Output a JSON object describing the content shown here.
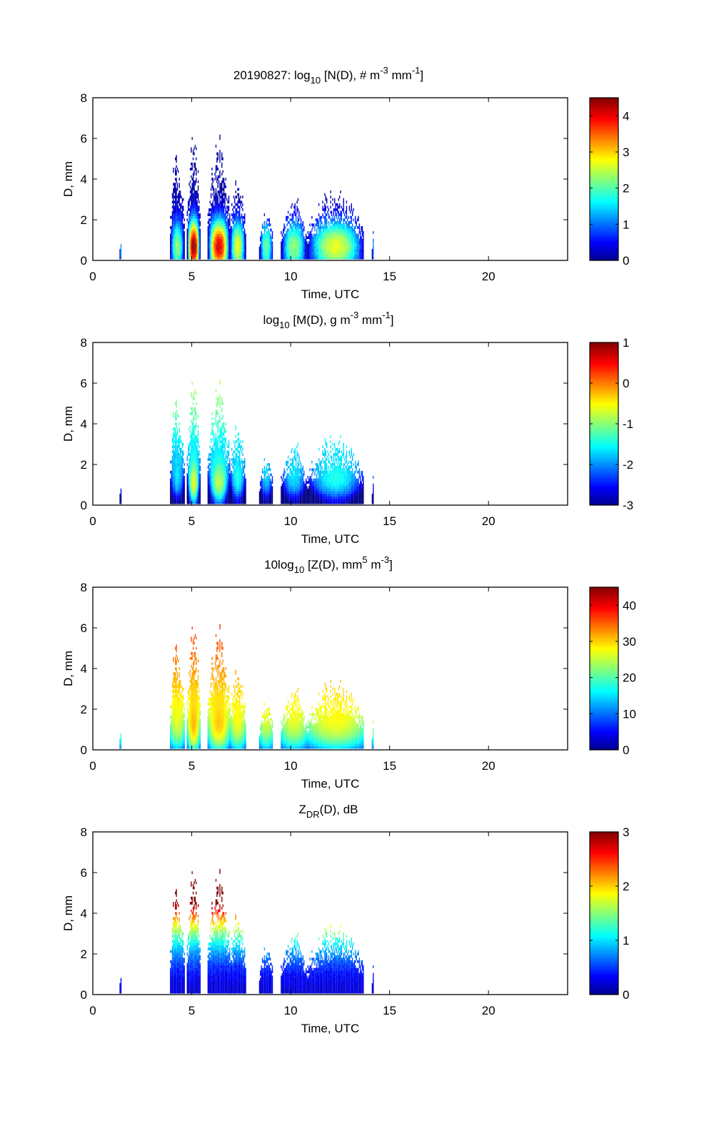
{
  "figure": {
    "date": "20190827"
  },
  "chart_data": [
    {
      "type": "heatmap",
      "title_parts": {
        "prefix": "20190827: log",
        "sub": "10",
        "rest": " [N(D), # m",
        "sup1": "-3",
        "mid": " mm",
        "sup2": "-1",
        "end": "]"
      },
      "xlabel": "Time, UTC",
      "ylabel": "D, mm",
      "xlim": [
        0,
        24
      ],
      "ylim": [
        0,
        8
      ],
      "xticks": [
        0,
        5,
        10,
        15,
        20
      ],
      "yticks": [
        0,
        2,
        4,
        6,
        8
      ],
      "colorbar": {
        "colormap": "jet",
        "clim": [
          0,
          4.5
        ],
        "ticks": [
          0,
          1,
          2,
          3,
          4
        ]
      },
      "variable": "N",
      "clusters": [
        {
          "t0": 1.35,
          "t1": 1.45,
          "dmax": 0.9,
          "peak": 1.2
        },
        {
          "t0": 3.9,
          "t1": 4.6,
          "dmax": 5.9,
          "peak": 2.2
        },
        {
          "t0": 4.75,
          "t1": 5.4,
          "dmax": 6.9,
          "peak": 4.4
        },
        {
          "t0": 5.8,
          "t1": 6.9,
          "dmax": 6.3,
          "peak": 4.0
        },
        {
          "t0": 6.9,
          "t1": 7.7,
          "dmax": 4.2,
          "peak": 2.6
        },
        {
          "t0": 8.4,
          "t1": 9.1,
          "dmax": 2.7,
          "peak": 2.0
        },
        {
          "t0": 9.5,
          "t1": 10.8,
          "dmax": 3.3,
          "peak": 2.2
        },
        {
          "t0": 10.8,
          "t1": 13.7,
          "dmax": 3.6,
          "peak": 2.6
        },
        {
          "t0": 14.1,
          "t1": 14.2,
          "dmax": 1.8,
          "peak": 1.0
        }
      ]
    },
    {
      "type": "heatmap",
      "title_parts": {
        "prefix": "log",
        "sub": "10",
        "rest": " [M(D), g m",
        "sup1": "-3",
        "mid": " mm",
        "sup2": "-1",
        "end": "]"
      },
      "xlabel": "Time, UTC",
      "ylabel": "D, mm",
      "xlim": [
        0,
        24
      ],
      "ylim": [
        0,
        8
      ],
      "xticks": [
        0,
        5,
        10,
        15,
        20
      ],
      "yticks": [
        0,
        2,
        4,
        6,
        8
      ],
      "colorbar": {
        "colormap": "jet",
        "clim": [
          -3,
          1
        ],
        "ticks": [
          -3,
          -2,
          -1,
          0,
          1
        ]
      },
      "variable": "M"
    },
    {
      "type": "heatmap",
      "title_parts": {
        "prefix": "10log",
        "sub": "10",
        "rest": " [Z(D),  mm",
        "sup1": "5",
        "mid": " m",
        "sup2": "-3",
        "end": "]"
      },
      "xlabel": "Time, UTC",
      "ylabel": "D, mm",
      "xlim": [
        0,
        24
      ],
      "ylim": [
        0,
        8
      ],
      "xticks": [
        0,
        5,
        10,
        15,
        20
      ],
      "yticks": [
        0,
        2,
        4,
        6,
        8
      ],
      "colorbar": {
        "colormap": "jet",
        "clim": [
          0,
          45
        ],
        "ticks": [
          0,
          10,
          20,
          30,
          40
        ]
      },
      "variable": "Z"
    },
    {
      "type": "heatmap",
      "title_parts": {
        "prefix": "Z",
        "sub": "DR",
        "rest": "(D), dB",
        "sup1": "",
        "mid": "",
        "sup2": "",
        "end": ""
      },
      "xlabel": "Time, UTC",
      "ylabel": "D, mm",
      "xlim": [
        0,
        24
      ],
      "ylim": [
        0,
        8
      ],
      "xticks": [
        0,
        5,
        10,
        15,
        20
      ],
      "yticks": [
        0,
        2,
        4,
        6,
        8
      ],
      "colorbar": {
        "colormap": "jet",
        "clim": [
          0,
          3
        ],
        "ticks": [
          0,
          1,
          2,
          3
        ]
      },
      "variable": "ZDR"
    }
  ]
}
